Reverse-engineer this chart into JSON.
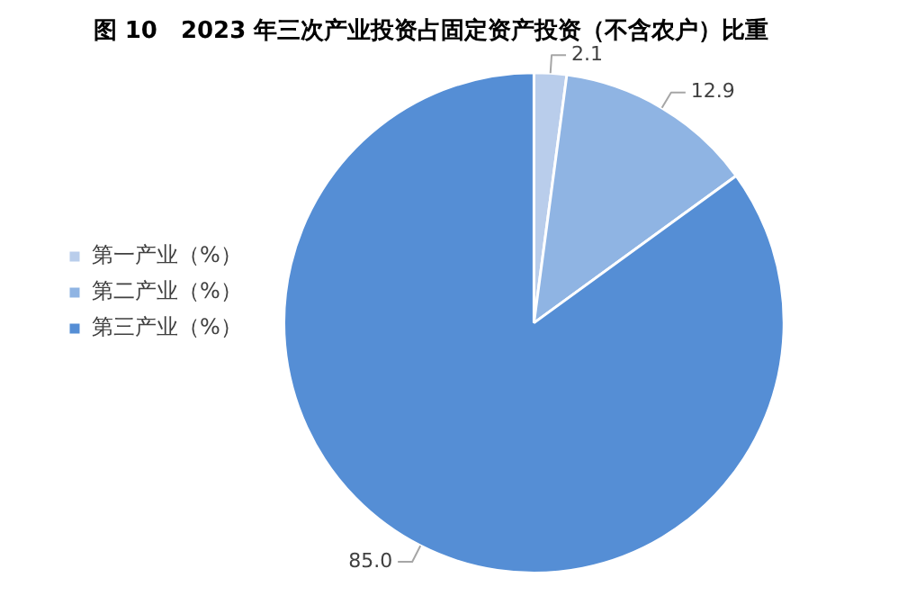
{
  "chart_data": {
    "type": "pie",
    "title": "图 10　2023 年三次产业投资占固定资产投资（不含农户）比重",
    "categories": [
      "第一产业（%）",
      "第二产业（%）",
      "第三产业（%）"
    ],
    "values": [
      2.1,
      12.9,
      85.0
    ],
    "value_labels": [
      "2.1",
      "12.9",
      "85.0"
    ],
    "colors": [
      "#b9cdeb",
      "#8fb4e3",
      "#558ed5"
    ],
    "legend": "left"
  }
}
